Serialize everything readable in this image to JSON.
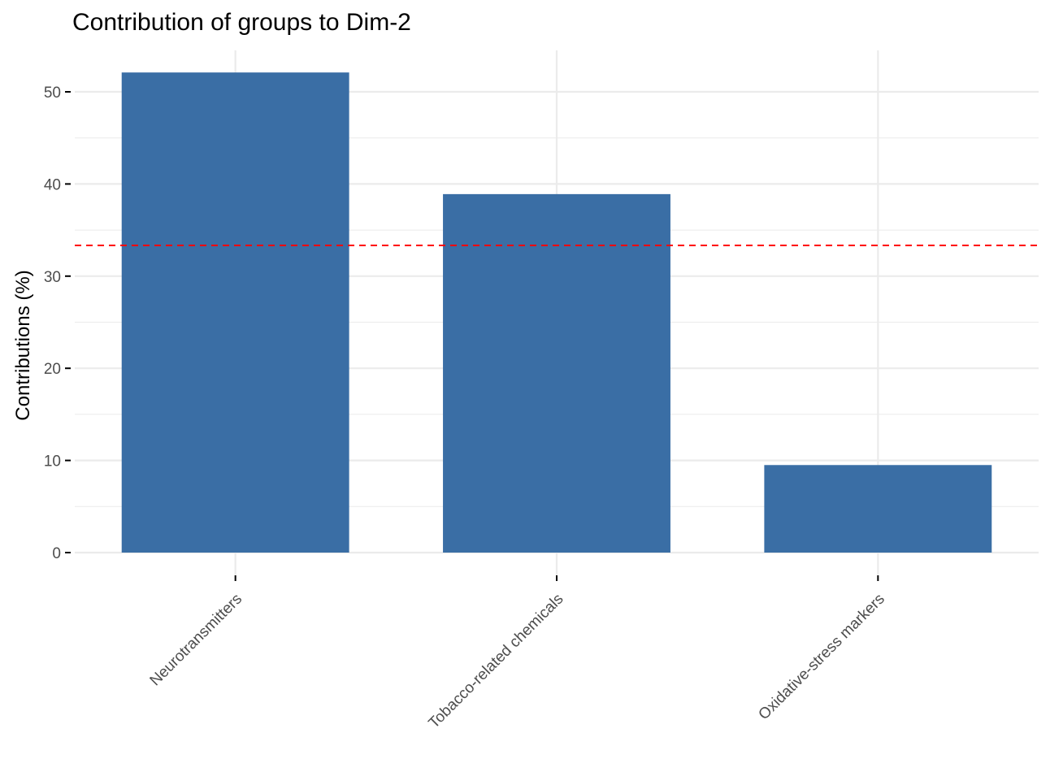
{
  "chart_data": {
    "type": "bar",
    "title": "Contribution of groups to Dim-2",
    "xlabel": "",
    "ylabel": "Contributions (%)",
    "categories": [
      "Neurotransmitters",
      "Tobacco-related chemicals",
      "Oxidative-stress markers"
    ],
    "values": [
      52.1,
      38.9,
      9.5
    ],
    "ylim": [
      0,
      55
    ],
    "yticks": [
      0,
      10,
      20,
      30,
      40,
      50
    ],
    "reference_line": 33.33,
    "grid": true,
    "colors": {
      "bar": "#3a6ea5",
      "reference_line": "#ff0000",
      "grid": "#ebebeb"
    }
  }
}
